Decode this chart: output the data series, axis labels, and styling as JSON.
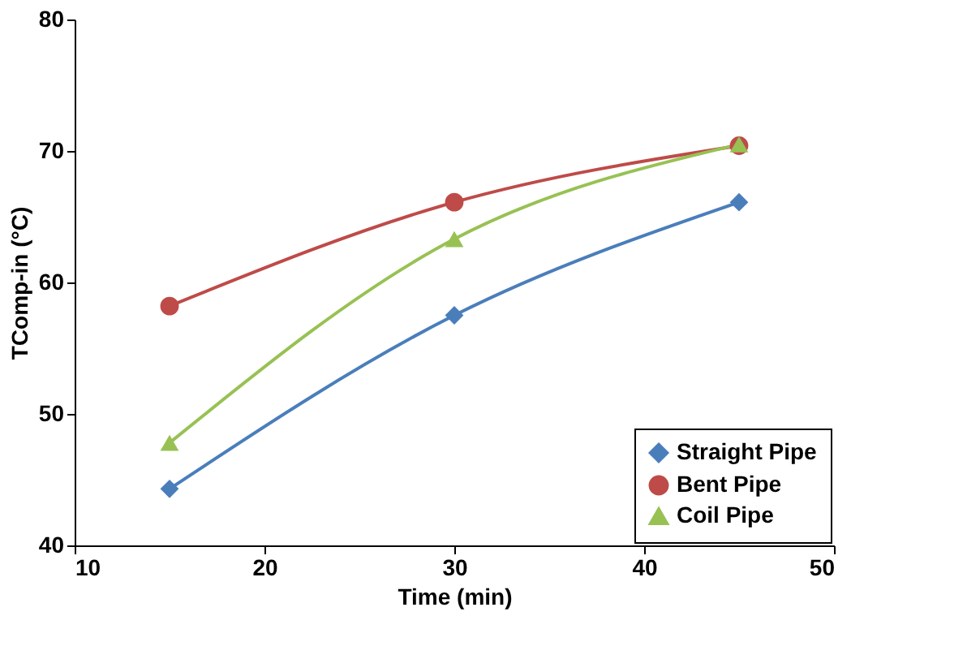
{
  "chart_data": {
    "type": "line",
    "xlabel": "Time (min)",
    "ylabel": "TComp-in (°C)",
    "x": [
      15,
      30,
      45
    ],
    "series": [
      {
        "name": "Straight Pipe",
        "color": "#4a7ebb",
        "marker": "diamond",
        "values": [
          44.3,
          57.5,
          66.1
        ]
      },
      {
        "name": "Bent Pipe",
        "color": "#be4b48",
        "marker": "circle",
        "values": [
          58.2,
          66.1,
          70.4
        ]
      },
      {
        "name": "Coil Pipe",
        "color": "#98c154",
        "marker": "triangle",
        "values": [
          47.8,
          63.3,
          70.5
        ]
      }
    ],
    "xlim": [
      10,
      50
    ],
    "xticks": [
      10,
      20,
      30,
      40,
      50
    ],
    "ylim": [
      40,
      80
    ],
    "yticks": [
      40,
      50,
      60,
      70,
      80
    ],
    "grid": false,
    "legend": "bottom right",
    "line_style": "solid"
  }
}
